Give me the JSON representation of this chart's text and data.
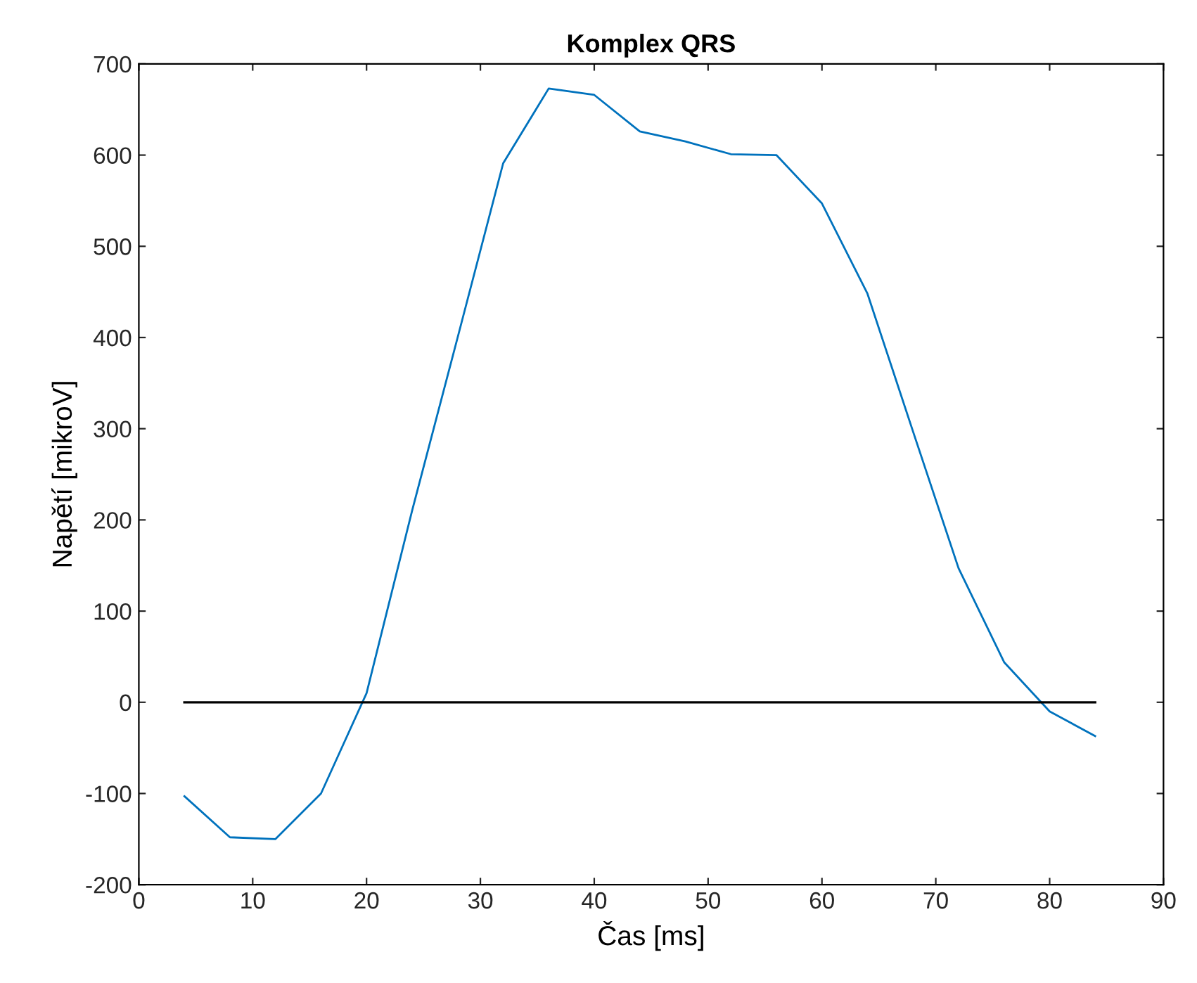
{
  "chart_data": {
    "type": "line",
    "title": "Komplex QRS",
    "xlabel": "Čas [ms]",
    "ylabel": "Napětí [mikroV]",
    "x": [
      4,
      8,
      12,
      16,
      20,
      24,
      28,
      32,
      36,
      40,
      44,
      48,
      52,
      56,
      60,
      64,
      68,
      72,
      76,
      80,
      84
    ],
    "series": [
      {
        "color": "#0072bd",
        "values": [
          -103,
          -148,
          -150,
          -100,
          10,
          210,
          400,
          591,
          673,
          666,
          626,
          615,
          601,
          600,
          547,
          448,
          297,
          147,
          44,
          -10,
          -37
        ]
      },
      {
        "color": "#000000",
        "x": [
          4,
          84
        ],
        "values": [
          0,
          0
        ]
      }
    ],
    "xlim": [
      0,
      90
    ],
    "xticks": [
      0,
      10,
      20,
      30,
      40,
      50,
      60,
      70,
      80,
      90
    ],
    "ylim": [
      -200,
      700
    ],
    "yticks": [
      -200,
      -100,
      0,
      100,
      200,
      300,
      400,
      500,
      600,
      700
    ],
    "grid": false
  }
}
